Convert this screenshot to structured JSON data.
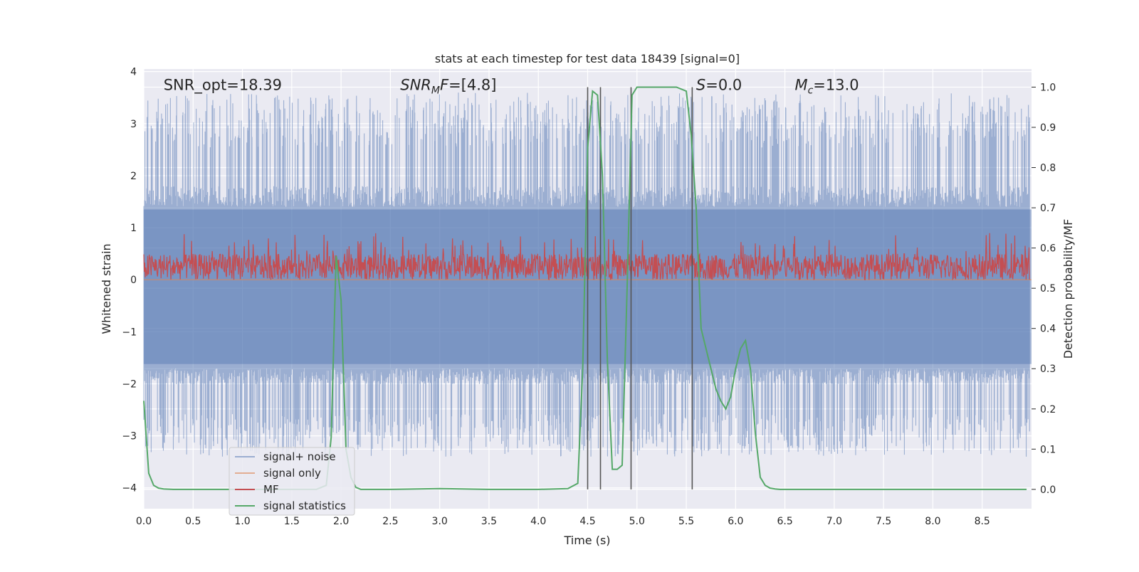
{
  "chart_data": {
    "type": "line",
    "title": "stats at each timestep for test data 18439 [signal=0]",
    "xlabel": "Time (s)",
    "ylabel_left": "Whitened strain",
    "ylabel_right": "Detection probability/MF",
    "xlim": [
      0.0,
      9.0
    ],
    "ylim_left": [
      -4.4,
      4.05
    ],
    "ylim_right": [
      -0.048,
      1.045
    ],
    "xticks": [
      0.0,
      0.5,
      1.0,
      1.5,
      2.0,
      2.5,
      3.0,
      3.5,
      4.0,
      4.5,
      5.0,
      5.5,
      6.0,
      6.5,
      7.0,
      7.5,
      8.0,
      8.5
    ],
    "xtick_labels": [
      "0.0",
      "0.5",
      "1.0",
      "1.5",
      "2.0",
      "2.5",
      "3.0",
      "3.5",
      "4.0",
      "4.5",
      "5.0",
      "5.5",
      "6.0",
      "6.5",
      "7.0",
      "7.5",
      "8.0",
      "8.5"
    ],
    "yticks_left": [
      -4,
      -3,
      -2,
      -1,
      0,
      1,
      2,
      3,
      4
    ],
    "ytick_labels_left": [
      "−4",
      "−3",
      "−2",
      "−1",
      "0",
      "1",
      "2",
      "3",
      "4"
    ],
    "yticks_right": [
      0.0,
      0.1,
      0.2,
      0.3,
      0.4,
      0.5,
      0.6,
      0.7,
      0.8,
      0.9,
      1.0
    ],
    "ytick_labels_right": [
      "0.0",
      "0.1",
      "0.2",
      "0.3",
      "0.4",
      "0.5",
      "0.6",
      "0.7",
      "0.8",
      "0.9",
      "1.0"
    ],
    "grid": true,
    "legend_position": "lower-left",
    "colors": {
      "background": "#EAEAF2",
      "grid": "#FFFFFF",
      "noise": "#4C72B0",
      "signal_only": "#DD8452",
      "mf": "#C44E52",
      "stats": "#55A868",
      "vline": "#555555"
    },
    "annotations": [
      {
        "kind": "plain",
        "text": "SNR_opt=18.39",
        "x": 0.2
      },
      {
        "kind": "snrmf",
        "main": "SNR",
        "sub": "M",
        "rest": "F=[4.8]",
        "x": 2.6
      },
      {
        "kind": "s",
        "main": "S",
        "rest": "=0.0",
        "x": 5.6
      },
      {
        "kind": "mc",
        "main": "M",
        "sub": "c",
        "rest": "=13.0",
        "x": 6.6
      }
    ],
    "annotation_y": 3.65,
    "vertical_lines_x": [
      4.5,
      4.63,
      4.94,
      5.56
    ],
    "series": [
      {
        "name": "signal+ noise",
        "key": "noise",
        "description_range": [
          -1.7,
          1.4
        ],
        "spike_max": 3.6,
        "spike_min": -3.4
      },
      {
        "name": "signal only",
        "key": "signal_only",
        "y": 0.0
      },
      {
        "name": "MF",
        "key": "mf",
        "range": [
          0.0,
          0.9
        ]
      },
      {
        "name": "signal statistics",
        "key": "stats",
        "axis": "right",
        "x": [
          0.0,
          0.05,
          0.1,
          0.15,
          0.2,
          0.3,
          0.5,
          1.0,
          1.5,
          1.75,
          1.85,
          1.9,
          1.95,
          2.0,
          2.05,
          2.1,
          2.15,
          2.2,
          2.5,
          3.0,
          3.5,
          4.0,
          4.3,
          4.4,
          4.45,
          4.5,
          4.55,
          4.6,
          4.65,
          4.7,
          4.75,
          4.8,
          4.85,
          4.9,
          4.95,
          5.0,
          5.05,
          5.1,
          5.2,
          5.3,
          5.4,
          5.5,
          5.55,
          5.6,
          5.65,
          5.7,
          5.75,
          5.8,
          5.85,
          5.9,
          5.95,
          6.0,
          6.05,
          6.1,
          6.15,
          6.2,
          6.25,
          6.3,
          6.35,
          6.4,
          6.45,
          6.5,
          6.6,
          7.0,
          8.0,
          8.95
        ],
        "y": [
          0.22,
          0.04,
          0.01,
          0.003,
          0.001,
          0.0,
          0.0,
          0.0,
          0.0,
          0.0,
          0.01,
          0.13,
          0.58,
          0.47,
          0.1,
          0.03,
          0.005,
          0.0,
          0.0,
          0.002,
          0.0,
          0.0,
          0.002,
          0.015,
          0.3,
          0.85,
          0.99,
          0.98,
          0.78,
          0.32,
          0.05,
          0.05,
          0.06,
          0.5,
          0.98,
          1.0,
          1.0,
          1.0,
          1.0,
          1.0,
          1.0,
          0.99,
          0.88,
          0.7,
          0.4,
          0.35,
          0.3,
          0.25,
          0.22,
          0.2,
          0.23,
          0.3,
          0.35,
          0.37,
          0.3,
          0.14,
          0.03,
          0.01,
          0.003,
          0.001,
          0.0,
          0.0,
          0.0,
          0.0,
          0.0,
          0.0
        ]
      }
    ]
  }
}
